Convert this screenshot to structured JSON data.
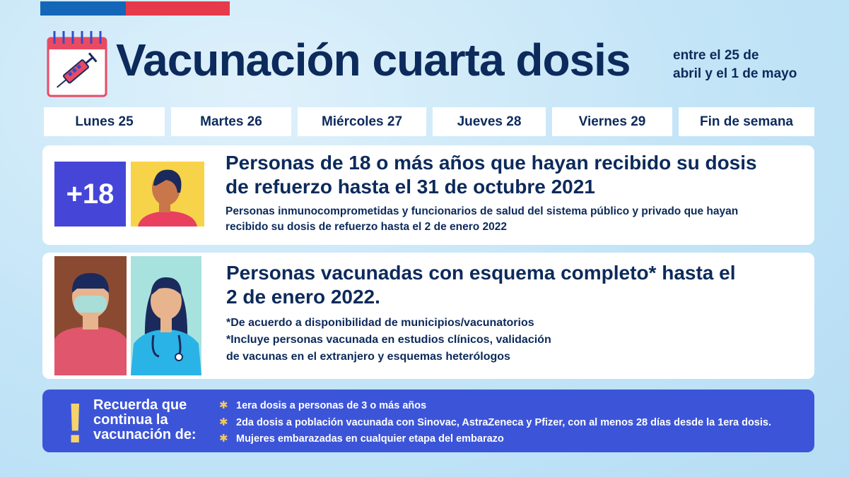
{
  "header": {
    "title": "Vacunación cuarta dosis",
    "subtitle_line1": "entre el 25 de",
    "subtitle_line2": "abril y el 1 de mayo"
  },
  "days": [
    "Lunes 25",
    "Martes 26",
    "Miércoles 27",
    "Jueves 28",
    "Viernes 29",
    "Fin de semana"
  ],
  "card1": {
    "badge": "+18",
    "heading_line1": "Personas de 18 o más años que hayan recibido su dosis",
    "heading_line2": "de refuerzo hasta el 31 de octubre 2021",
    "sub_line1": "Personas inmunocomprometidas y funcionarios de salud del sistema público y privado que hayan",
    "sub_line2_prefix": "recibido su dosis de refuerzo hasta el ",
    "sub_line2_bold": "2 de enero 2022"
  },
  "card2": {
    "heading_line1": "Personas vacunadas con esquema completo* hasta el",
    "heading_line2": "2 de enero 2022.",
    "note1": "*De acuerdo a disponibilidad de municipios/vacunatorios",
    "note2_line1": "*Incluye personas vacunada en estudios clínicos, validación",
    "note2_line2": "de vacunas en el extranjero y esquemas heterólogos"
  },
  "banner": {
    "exclamation": "!",
    "label_line1": "Recuerda que",
    "label_line2": "continua la",
    "label_line3": "vacunación de:",
    "items": [
      "1era dosis a personas de 3 o más años",
      "2da dosis a población vacunada con Sinovac, AstraZeneca y Pfizer, con al menos 28 días desde la 1era dosis.",
      "Mujeres embarazadas en cualquier etapa del embarazo"
    ]
  },
  "colors": {
    "navy": "#0c2a5b",
    "badge": "#4546d8",
    "banner": "#3c55d8",
    "flag_blue": "#1466b8",
    "flag_red": "#e6394a",
    "star": "#f5c95e"
  }
}
